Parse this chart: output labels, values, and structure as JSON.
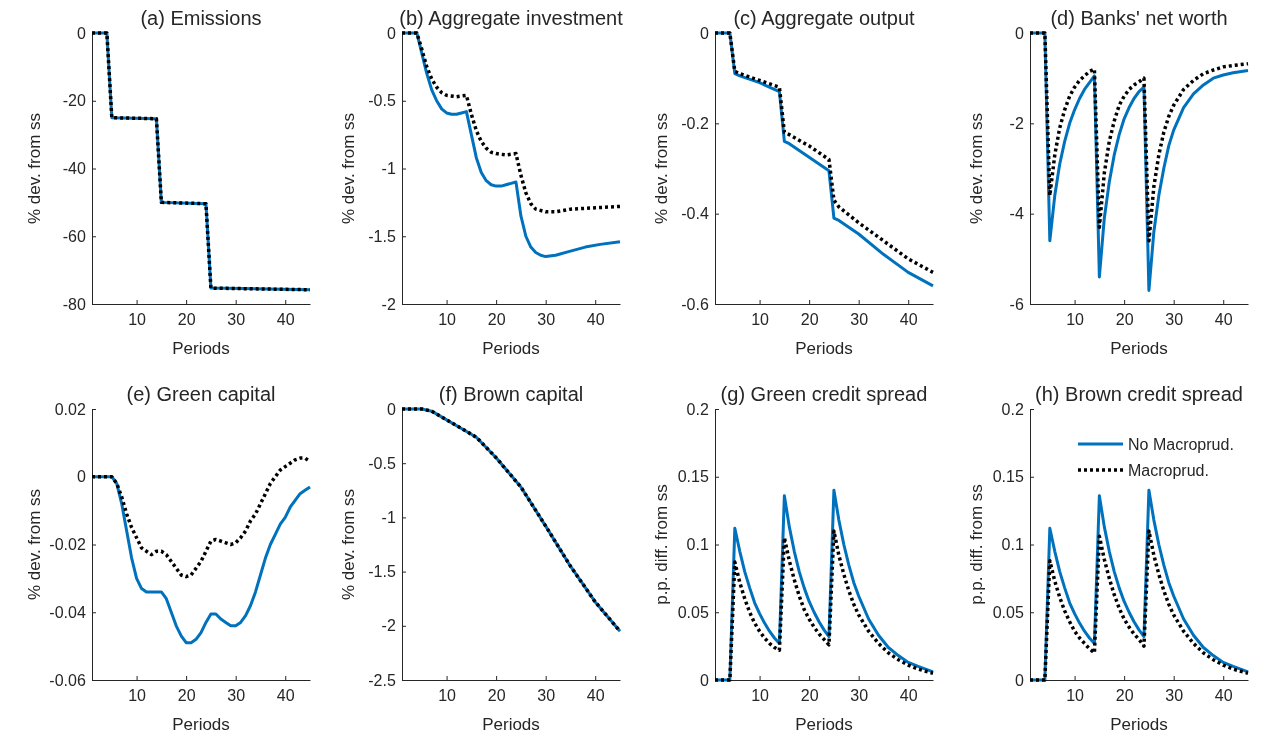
{
  "chart_data": [
    {
      "type": "line",
      "title": "(a) Emissions",
      "xlabel": "Periods",
      "ylabel": "% dev. from ss",
      "xlim": [
        1,
        45
      ],
      "xticks": [
        10,
        20,
        30,
        40
      ],
      "ylim": [
        -80,
        0
      ],
      "yticks": [
        -80,
        -60,
        -40,
        -20,
        0
      ],
      "legend": false,
      "series": [
        {
          "color": "#0072bd",
          "line_style": "solid",
          "x": [
            1,
            4,
            5,
            14,
            15,
            24,
            25,
            45
          ],
          "values": [
            0,
            0,
            -25,
            -25.3,
            -50,
            -50.4,
            -75.3,
            -75.8
          ]
        },
        {
          "color": "#000000",
          "line_style": "dotted",
          "x": [
            1,
            4,
            5,
            14,
            15,
            24,
            25,
            45
          ],
          "values": [
            0,
            0,
            -25,
            -25.3,
            -50,
            -50.4,
            -75.3,
            -75.8
          ]
        }
      ]
    },
    {
      "type": "line",
      "title": "(b) Aggregate investment",
      "xlabel": "Periods",
      "ylabel": "% dev. from ss",
      "xlim": [
        1,
        45
      ],
      "xticks": [
        10,
        20,
        30,
        40
      ],
      "ylim": [
        -2,
        0
      ],
      "yticks": [
        -2,
        -1.5,
        -1,
        -0.5,
        0
      ],
      "legend": false,
      "series": [
        {
          "color": "#0072bd",
          "line_style": "solid",
          "x": [
            1,
            4,
            5,
            6,
            7,
            8,
            9,
            10,
            11,
            12,
            13,
            14,
            15,
            16,
            17,
            18,
            19,
            20,
            21,
            22,
            23,
            24,
            25,
            26,
            27,
            28,
            29,
            30,
            32,
            35,
            38,
            41,
            45
          ],
          "values": [
            0,
            0,
            -0.15,
            -0.3,
            -0.42,
            -0.5,
            -0.56,
            -0.59,
            -0.6,
            -0.6,
            -0.59,
            -0.58,
            -0.75,
            -0.92,
            -1.03,
            -1.09,
            -1.12,
            -1.13,
            -1.13,
            -1.12,
            -1.11,
            -1.1,
            -1.35,
            -1.5,
            -1.58,
            -1.62,
            -1.64,
            -1.65,
            -1.64,
            -1.61,
            -1.58,
            -1.56,
            -1.54
          ]
        },
        {
          "color": "#000000",
          "line_style": "dotted",
          "x": [
            1,
            4,
            5,
            6,
            7,
            8,
            9,
            10,
            12,
            14,
            15,
            16,
            17,
            18,
            19,
            20,
            22,
            24,
            25,
            26,
            27,
            28,
            30,
            32,
            35,
            40,
            45
          ],
          "values": [
            0,
            0,
            -0.12,
            -0.25,
            -0.34,
            -0.4,
            -0.44,
            -0.46,
            -0.47,
            -0.46,
            -0.6,
            -0.72,
            -0.8,
            -0.85,
            -0.88,
            -0.89,
            -0.9,
            -0.89,
            -1.05,
            -1.18,
            -1.26,
            -1.3,
            -1.32,
            -1.32,
            -1.3,
            -1.29,
            -1.28
          ]
        }
      ]
    },
    {
      "type": "line",
      "title": "(c) Aggregate output",
      "xlabel": "Periods",
      "ylabel": "% dev. from ss",
      "xlim": [
        1,
        45
      ],
      "xticks": [
        10,
        20,
        30,
        40
      ],
      "ylim": [
        -0.6,
        0
      ],
      "yticks": [
        -0.6,
        -0.4,
        -0.2,
        0
      ],
      "legend": false,
      "series": [
        {
          "color": "#0072bd",
          "line_style": "solid",
          "x": [
            1,
            4,
            5,
            6,
            10,
            14,
            15,
            16,
            20,
            24,
            25,
            26,
            30,
            35,
            40,
            45
          ],
          "values": [
            0,
            0,
            -0.09,
            -0.095,
            -0.11,
            -0.13,
            -0.24,
            -0.245,
            -0.275,
            -0.305,
            -0.41,
            -0.415,
            -0.445,
            -0.49,
            -0.53,
            -0.56
          ]
        },
        {
          "color": "#000000",
          "line_style": "dotted",
          "x": [
            1,
            4,
            5,
            6,
            10,
            14,
            15,
            16,
            20,
            24,
            25,
            26,
            30,
            35,
            40,
            45
          ],
          "values": [
            0,
            0,
            -0.085,
            -0.09,
            -0.105,
            -0.12,
            -0.22,
            -0.225,
            -0.25,
            -0.28,
            -0.37,
            -0.385,
            -0.42,
            -0.46,
            -0.5,
            -0.53
          ]
        }
      ]
    },
    {
      "type": "line",
      "title": "(d) Banks' net worth",
      "xlabel": "Periods",
      "ylabel": "% dev. from ss",
      "xlim": [
        1,
        45
      ],
      "xticks": [
        10,
        20,
        30,
        40
      ],
      "ylim": [
        -6,
        0
      ],
      "yticks": [
        -6,
        -4,
        -2,
        0
      ],
      "legend": false,
      "series": [
        {
          "color": "#0072bd",
          "line_style": "solid",
          "x": [
            1,
            4,
            5,
            6,
            7,
            8,
            9,
            10,
            11,
            12,
            13,
            14,
            15,
            16,
            17,
            18,
            19,
            20,
            21,
            22,
            23,
            24,
            25,
            26,
            27,
            28,
            29,
            30,
            32,
            34,
            36,
            38,
            40,
            42,
            45
          ],
          "values": [
            0,
            0,
            -4.6,
            -3.6,
            -2.9,
            -2.4,
            -2,
            -1.7,
            -1.45,
            -1.25,
            -1.1,
            -0.95,
            -5.4,
            -4.1,
            -3.3,
            -2.7,
            -2.25,
            -1.9,
            -1.65,
            -1.45,
            -1.3,
            -1.2,
            -5.7,
            -4.4,
            -3.6,
            -3,
            -2.5,
            -2.15,
            -1.65,
            -1.35,
            -1.15,
            -1,
            -0.93,
            -0.88,
            -0.83
          ]
        },
        {
          "color": "#000000",
          "line_style": "dotted",
          "x": [
            1,
            4,
            5,
            6,
            7,
            8,
            9,
            10,
            11,
            12,
            13,
            14,
            15,
            16,
            17,
            18,
            19,
            20,
            21,
            22,
            23,
            24,
            25,
            26,
            27,
            28,
            29,
            30,
            32,
            34,
            36,
            38,
            40,
            42,
            45
          ],
          "values": [
            0,
            0,
            -3.6,
            -2.7,
            -2.1,
            -1.7,
            -1.4,
            -1.2,
            -1.05,
            -0.95,
            -0.85,
            -0.8,
            -4.3,
            -3.1,
            -2.4,
            -1.95,
            -1.6,
            -1.4,
            -1.25,
            -1.15,
            -1.08,
            -1,
            -4.6,
            -3.4,
            -2.7,
            -2.2,
            -1.85,
            -1.6,
            -1.25,
            -1.05,
            -0.9,
            -0.82,
            -0.75,
            -0.72,
            -0.68
          ]
        }
      ]
    },
    {
      "type": "line",
      "title": "(e) Green capital",
      "xlabel": "Periods",
      "ylabel": "% dev. from ss",
      "xlim": [
        1,
        45
      ],
      "xticks": [
        10,
        20,
        30,
        40
      ],
      "ylim": [
        -0.06,
        0.02
      ],
      "yticks": [
        -0.06,
        -0.04,
        -0.02,
        0,
        0.02
      ],
      "legend": false,
      "series": [
        {
          "color": "#0072bd",
          "line_style": "solid",
          "x": [
            1,
            5,
            6,
            7,
            8,
            9,
            10,
            11,
            12,
            13,
            14,
            15,
            16,
            17,
            18,
            19,
            20,
            21,
            22,
            23,
            24,
            25,
            26,
            27,
            28,
            29,
            30,
            31,
            32,
            33,
            34,
            35,
            36,
            37,
            38,
            39,
            40,
            41,
            42,
            43,
            44,
            45
          ],
          "values": [
            0,
            0,
            -0.002,
            -0.008,
            -0.016,
            -0.024,
            -0.03,
            -0.033,
            -0.034,
            -0.034,
            -0.034,
            -0.034,
            -0.036,
            -0.04,
            -0.044,
            -0.047,
            -0.049,
            -0.049,
            -0.048,
            -0.046,
            -0.043,
            -0.0405,
            -0.0405,
            -0.042,
            -0.043,
            -0.044,
            -0.044,
            -0.043,
            -0.041,
            -0.038,
            -0.034,
            -0.029,
            -0.024,
            -0.02,
            -0.017,
            -0.014,
            -0.012,
            -0.009,
            -0.007,
            -0.005,
            -0.004,
            -0.003
          ]
        },
        {
          "color": "#000000",
          "line_style": "dotted",
          "x": [
            1,
            5,
            6,
            7,
            8,
            9,
            10,
            11,
            12,
            13,
            14,
            15,
            16,
            17,
            18,
            19,
            20,
            21,
            22,
            23,
            24,
            25,
            26,
            27,
            28,
            29,
            30,
            31,
            32,
            33,
            34,
            35,
            36,
            37,
            38,
            39,
            40,
            41,
            42,
            43,
            44,
            45
          ],
          "values": [
            0,
            0,
            -0.002,
            -0.006,
            -0.011,
            -0.015,
            -0.018,
            -0.021,
            -0.022,
            -0.023,
            -0.022,
            -0.022,
            -0.023,
            -0.025,
            -0.027,
            -0.029,
            -0.0295,
            -0.029,
            -0.027,
            -0.025,
            -0.022,
            -0.019,
            -0.0185,
            -0.019,
            -0.0195,
            -0.02,
            -0.0195,
            -0.018,
            -0.016,
            -0.013,
            -0.011,
            -0.008,
            -0.005,
            -0.002,
            0,
            0.002,
            0.003,
            0.004,
            0.005,
            0.0055,
            0.0055,
            0.0045
          ]
        }
      ]
    },
    {
      "type": "line",
      "title": "(f) Brown capital",
      "xlabel": "Periods",
      "ylabel": "% dev. from ss",
      "xlim": [
        1,
        45
      ],
      "xticks": [
        10,
        20,
        30,
        40
      ],
      "ylim": [
        -2.5,
        0
      ],
      "yticks": [
        -2.5,
        -2,
        -1.5,
        -1,
        -0.5,
        0
      ],
      "legend": false,
      "series": [
        {
          "color": "#0072bd",
          "line_style": "solid",
          "x": [
            1,
            5,
            7,
            10,
            13,
            16,
            20,
            25,
            30,
            35,
            40,
            45
          ],
          "values": [
            0,
            0,
            -0.02,
            -0.1,
            -0.18,
            -0.26,
            -0.45,
            -0.72,
            -1.08,
            -1.45,
            -1.78,
            -2.05
          ]
        },
        {
          "color": "#000000",
          "line_style": "dotted",
          "x": [
            1,
            5,
            7,
            10,
            13,
            16,
            20,
            25,
            30,
            35,
            40,
            45
          ],
          "values": [
            0,
            0,
            -0.02,
            -0.1,
            -0.18,
            -0.26,
            -0.45,
            -0.72,
            -1.08,
            -1.45,
            -1.78,
            -2.05
          ]
        }
      ]
    },
    {
      "type": "line",
      "title": "(g) Green credit spread",
      "xlabel": "Periods",
      "ylabel": "p.p. diff. from ss",
      "xlim": [
        1,
        45
      ],
      "xticks": [
        10,
        20,
        30,
        40
      ],
      "ylim": [
        0,
        0.2
      ],
      "yticks": [
        0,
        0.05,
        0.1,
        0.15,
        0.2
      ],
      "legend": false,
      "series": [
        {
          "color": "#0072bd",
          "line_style": "solid",
          "x": [
            1,
            4,
            5,
            6,
            7,
            8,
            9,
            10,
            11,
            12,
            13,
            14,
            15,
            16,
            17,
            18,
            19,
            20,
            21,
            22,
            23,
            24,
            25,
            26,
            27,
            28,
            29,
            30,
            32,
            34,
            36,
            38,
            40,
            42,
            45
          ],
          "values": [
            0,
            0,
            0.112,
            0.095,
            0.08,
            0.068,
            0.057,
            0.049,
            0.042,
            0.036,
            0.031,
            0.027,
            0.136,
            0.113,
            0.095,
            0.08,
            0.068,
            0.058,
            0.05,
            0.043,
            0.037,
            0.032,
            0.14,
            0.118,
            0.1,
            0.085,
            0.072,
            0.062,
            0.045,
            0.033,
            0.024,
            0.018,
            0.013,
            0.01,
            0.006
          ]
        },
        {
          "color": "#000000",
          "line_style": "dotted",
          "x": [
            1,
            4,
            5,
            6,
            7,
            8,
            9,
            10,
            11,
            12,
            13,
            14,
            15,
            16,
            17,
            18,
            19,
            20,
            21,
            22,
            23,
            24,
            25,
            26,
            27,
            28,
            29,
            30,
            32,
            34,
            36,
            38,
            40,
            42,
            45
          ],
          "values": [
            0,
            0,
            0.087,
            0.072,
            0.06,
            0.05,
            0.042,
            0.036,
            0.031,
            0.027,
            0.024,
            0.022,
            0.105,
            0.088,
            0.074,
            0.062,
            0.052,
            0.045,
            0.039,
            0.034,
            0.03,
            0.026,
            0.11,
            0.092,
            0.078,
            0.066,
            0.056,
            0.048,
            0.036,
            0.027,
            0.02,
            0.015,
            0.011,
            0.008,
            0.005
          ]
        }
      ]
    },
    {
      "type": "line",
      "title": "(h) Brown credit spread",
      "xlabel": "Periods",
      "ylabel": "p.p. diff. from ss",
      "xlim": [
        1,
        45
      ],
      "xticks": [
        10,
        20,
        30,
        40
      ],
      "ylim": [
        0,
        0.2
      ],
      "yticks": [
        0,
        0.05,
        0.1,
        0.15,
        0.2
      ],
      "legend": "top right",
      "series": [
        {
          "name": "No Macroprud.",
          "color": "#0072bd",
          "line_style": "solid",
          "x": [
            1,
            4,
            5,
            6,
            7,
            8,
            9,
            10,
            11,
            12,
            13,
            14,
            15,
            16,
            17,
            18,
            19,
            20,
            21,
            22,
            23,
            24,
            25,
            26,
            27,
            28,
            29,
            30,
            32,
            34,
            36,
            38,
            40,
            42,
            45
          ],
          "values": [
            0,
            0,
            0.112,
            0.095,
            0.08,
            0.068,
            0.057,
            0.049,
            0.042,
            0.036,
            0.031,
            0.027,
            0.136,
            0.113,
            0.095,
            0.08,
            0.068,
            0.058,
            0.05,
            0.043,
            0.037,
            0.032,
            0.14,
            0.118,
            0.1,
            0.085,
            0.072,
            0.062,
            0.045,
            0.033,
            0.024,
            0.018,
            0.013,
            0.01,
            0.006
          ]
        },
        {
          "name": "Macroprud.",
          "color": "#000000",
          "line_style": "dotted",
          "x": [
            1,
            4,
            5,
            6,
            7,
            8,
            9,
            10,
            11,
            12,
            13,
            14,
            15,
            16,
            17,
            18,
            19,
            20,
            21,
            22,
            23,
            24,
            25,
            26,
            27,
            28,
            29,
            30,
            32,
            34,
            36,
            38,
            40,
            42,
            45
          ],
          "values": [
            0,
            0,
            0.088,
            0.073,
            0.061,
            0.051,
            0.043,
            0.036,
            0.031,
            0.027,
            0.023,
            0.02,
            0.106,
            0.089,
            0.075,
            0.063,
            0.053,
            0.045,
            0.039,
            0.034,
            0.03,
            0.025,
            0.11,
            0.092,
            0.078,
            0.066,
            0.056,
            0.048,
            0.036,
            0.027,
            0.02,
            0.015,
            0.011,
            0.008,
            0.005
          ]
        }
      ]
    }
  ]
}
